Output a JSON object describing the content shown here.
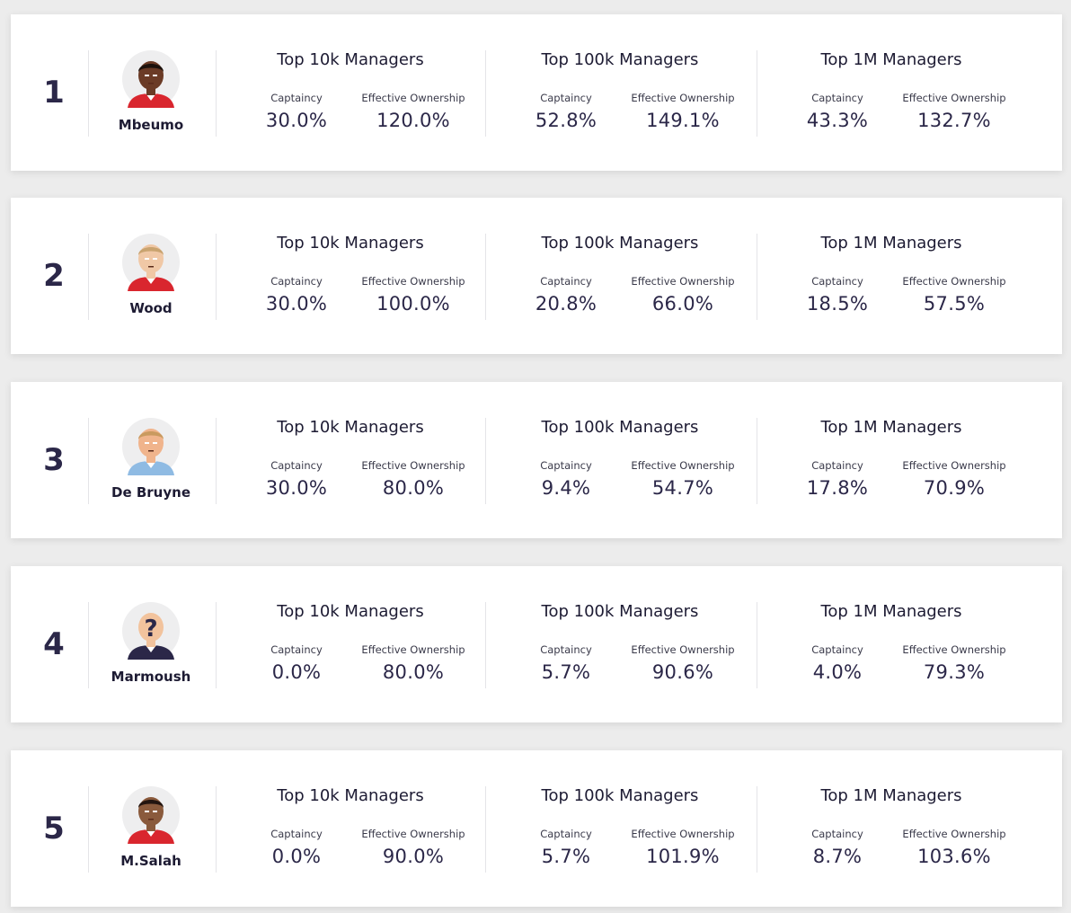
{
  "colors": {
    "background": "#ececec",
    "card": "#ffffff",
    "text_dark": "#2b2748",
    "divider": "#e4e4e8"
  },
  "cards": [
    {
      "rank": "1",
      "player": {
        "name": "Mbeumo",
        "avatar": "player-avatar-dark-skin-red-kit-icon",
        "skin": "#6b3b26",
        "hair": "#1d120d",
        "kit": "#d9262e"
      },
      "tiers": [
        {
          "title": "Top 10k Managers",
          "captaincy_label": "Captaincy",
          "captaincy": "30.0%",
          "eo_label": "Effective Ownership",
          "eo": "120.0%"
        },
        {
          "title": "Top 100k Managers",
          "captaincy_label": "Captaincy",
          "captaincy": "52.8%",
          "eo_label": "Effective Ownership",
          "eo": "149.1%"
        },
        {
          "title": "Top 1M Managers",
          "captaincy_label": "Captaincy",
          "captaincy": "43.3%",
          "eo_label": "Effective Ownership",
          "eo": "132.7%"
        }
      ]
    },
    {
      "rank": "2",
      "player": {
        "name": "Wood",
        "avatar": "player-avatar-blond-red-kit-icon",
        "skin": "#f0c8a6",
        "hair": "#c9a36f",
        "kit": "#d9262e"
      },
      "tiers": [
        {
          "title": "Top 10k Managers",
          "captaincy_label": "Captaincy",
          "captaincy": "30.0%",
          "eo_label": "Effective Ownership",
          "eo": "100.0%"
        },
        {
          "title": "Top 100k Managers",
          "captaincy_label": "Captaincy",
          "captaincy": "20.8%",
          "eo_label": "Effective Ownership",
          "eo": "66.0%"
        },
        {
          "title": "Top 1M Managers",
          "captaincy_label": "Captaincy",
          "captaincy": "18.5%",
          "eo_label": "Effective Ownership",
          "eo": "57.5%"
        }
      ]
    },
    {
      "rank": "3",
      "player": {
        "name": "De Bruyne",
        "avatar": "player-avatar-ginger-sky-blue-kit-icon",
        "skin": "#f0b48c",
        "hair": "#c99a5f",
        "kit": "#8fbbe3"
      },
      "tiers": [
        {
          "title": "Top 10k Managers",
          "captaincy_label": "Captaincy",
          "captaincy": "30.0%",
          "eo_label": "Effective Ownership",
          "eo": "80.0%"
        },
        {
          "title": "Top 100k Managers",
          "captaincy_label": "Captaincy",
          "captaincy": "9.4%",
          "eo_label": "Effective Ownership",
          "eo": "54.7%"
        },
        {
          "title": "Top 1M Managers",
          "captaincy_label": "Captaincy",
          "captaincy": "17.8%",
          "eo_label": "Effective Ownership",
          "eo": "70.9%"
        }
      ]
    },
    {
      "rank": "4",
      "player": {
        "name": "Marmoush",
        "avatar": "player-avatar-unknown-question-mark-icon",
        "skin": "#f2c39d",
        "hair": "#f2c39d",
        "kit": "#2b2748"
      },
      "tiers": [
        {
          "title": "Top 10k Managers",
          "captaincy_label": "Captaincy",
          "captaincy": "0.0%",
          "eo_label": "Effective Ownership",
          "eo": "80.0%"
        },
        {
          "title": "Top 100k Managers",
          "captaincy_label": "Captaincy",
          "captaincy": "5.7%",
          "eo_label": "Effective Ownership",
          "eo": "90.6%"
        },
        {
          "title": "Top 1M Managers",
          "captaincy_label": "Captaincy",
          "captaincy": "4.0%",
          "eo_label": "Effective Ownership",
          "eo": "79.3%"
        }
      ]
    },
    {
      "rank": "5",
      "player": {
        "name": "M.Salah",
        "avatar": "player-avatar-bearded-red-kit-icon",
        "skin": "#8a5a3c",
        "hair": "#231510",
        "kit": "#d9262e"
      },
      "tiers": [
        {
          "title": "Top 10k Managers",
          "captaincy_label": "Captaincy",
          "captaincy": "0.0%",
          "eo_label": "Effective Ownership",
          "eo": "90.0%"
        },
        {
          "title": "Top 100k Managers",
          "captaincy_label": "Captaincy",
          "captaincy": "5.7%",
          "eo_label": "Effective Ownership",
          "eo": "101.9%"
        },
        {
          "title": "Top 1M Managers",
          "captaincy_label": "Captaincy",
          "captaincy": "8.7%",
          "eo_label": "Effective Ownership",
          "eo": "103.6%"
        }
      ]
    }
  ]
}
